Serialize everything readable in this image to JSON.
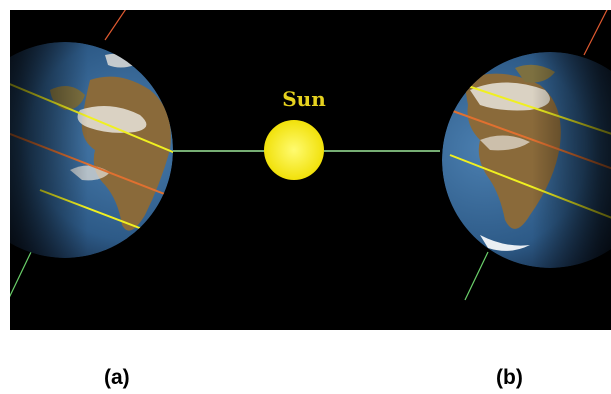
{
  "scene": {
    "sun_label": "Sun",
    "colors": {
      "background": "#000000",
      "sun": "#f7ea13",
      "sun_label": "#e6d21f",
      "sun_line": "#9ee89a",
      "ocean": "#2f5f8f",
      "land": "#8a6a3a",
      "cloud": "#e8e4dc",
      "equator_line": "#f0f020",
      "tropic_line": "#e07030",
      "axis_top": "#e05a30",
      "axis_bottom": "#6ad06a"
    }
  },
  "labels": {
    "a": "(a)",
    "b": "(b)"
  }
}
